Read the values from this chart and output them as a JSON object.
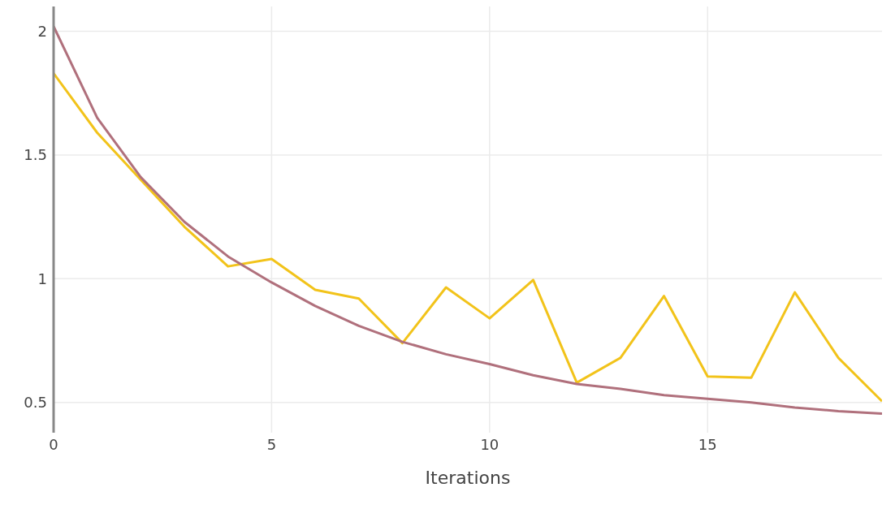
{
  "chart_data": {
    "type": "line",
    "xlabel": "Iterations",
    "x": [
      0,
      1,
      2,
      3,
      4,
      5,
      6,
      7,
      8,
      9,
      10,
      11,
      12,
      13,
      14,
      15,
      16,
      17,
      18,
      19
    ],
    "series": [
      {
        "color": "#f2c31a",
        "values": [
          1.83,
          1.59,
          1.4,
          1.21,
          1.05,
          1.08,
          0.955,
          0.92,
          0.74,
          0.965,
          0.84,
          0.995,
          0.58,
          0.68,
          0.93,
          0.605,
          0.6,
          0.945,
          0.68,
          0.505
        ]
      },
      {
        "color": "#b0707c",
        "values": [
          2.02,
          1.65,
          1.41,
          1.23,
          1.09,
          0.985,
          0.89,
          0.81,
          0.745,
          0.695,
          0.655,
          0.61,
          0.575,
          0.555,
          0.53,
          0.515,
          0.5,
          0.48,
          0.465,
          0.455
        ]
      }
    ],
    "xlim": [
      0,
      19
    ],
    "xticks": [
      0,
      5,
      10,
      15
    ],
    "ylim": [
      0.378,
      2.1
    ],
    "yticks": [
      0.5,
      1,
      1.5,
      2
    ],
    "grid": true,
    "marker": "none",
    "line_style": "solid"
  }
}
